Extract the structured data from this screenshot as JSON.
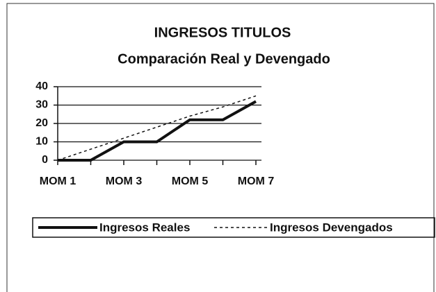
{
  "chart_data": {
    "type": "line",
    "title": "INGRESOS TITULOS",
    "subtitle": "Comparación Real y Devengado",
    "categories": [
      "MOM 1",
      null,
      "MOM 3",
      null,
      "MOM 5",
      null,
      "MOM 7"
    ],
    "series": [
      {
        "name": "Ingresos Reales",
        "color": "#111111",
        "dash": false,
        "values": [
          0,
          0,
          10,
          10,
          22,
          22,
          32
        ]
      },
      {
        "name": "Ingresos Devengados",
        "color": "#111111",
        "dash": true,
        "values": [
          0,
          6,
          12,
          18,
          24,
          29,
          35
        ]
      }
    ],
    "ylim": [
      0,
      40
    ],
    "yticks": [
      0,
      10,
      20,
      30,
      40
    ],
    "grid": true,
    "legend": "bottom"
  }
}
